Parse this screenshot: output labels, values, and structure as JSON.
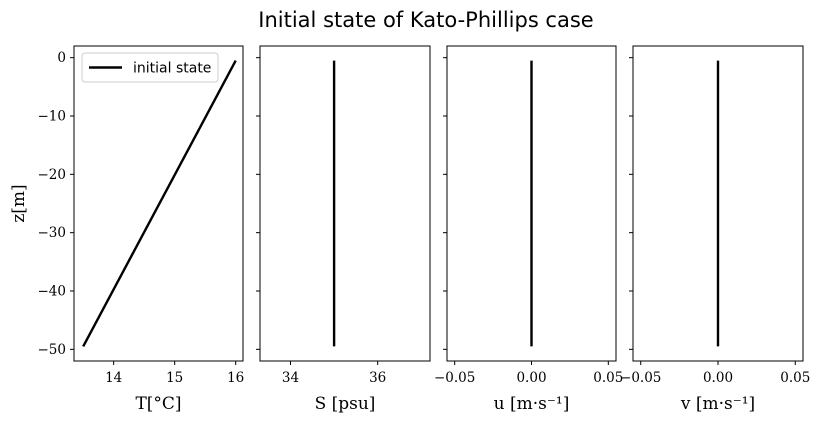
{
  "chart_data": {
    "title": "Initial state of Kato-Phillips case",
    "ylabel": "z[m]",
    "ylim": [
      -52,
      2
    ],
    "yticks": [
      0,
      -10,
      -20,
      -30,
      -40,
      -50
    ],
    "ytick_labels": [
      "0",
      "−10",
      "−20",
      "−30",
      "−40",
      "−50"
    ],
    "legend": {
      "label": "initial state",
      "placement": "top-left"
    },
    "panels": [
      {
        "type": "line",
        "xlabel": "T[°C]",
        "xlim": [
          13.35,
          16.12
        ],
        "xticks": [
          14,
          15,
          16
        ],
        "xtick_labels": [
          "14",
          "15",
          "16"
        ],
        "series": [
          {
            "name": "initial state",
            "x": [
              13.5,
              16.0
            ],
            "y": [
              -49.5,
              -0.5
            ]
          }
        ]
      },
      {
        "type": "line",
        "xlabel": "S [psu]",
        "xlim": [
          33.3,
          37.2
        ],
        "xticks": [
          34,
          36
        ],
        "xtick_labels": [
          "34",
          "36"
        ],
        "series": [
          {
            "x": [
              35.0,
              35.0
            ],
            "y": [
              -49.5,
              -0.5
            ]
          }
        ]
      },
      {
        "type": "line",
        "xlabel": "u [m·s⁻¹]",
        "xlim": [
          -0.055,
          0.055
        ],
        "xticks": [
          -0.05,
          0.0,
          0.05
        ],
        "xtick_labels": [
          "−0.05",
          "0.00",
          "0.05"
        ],
        "series": [
          {
            "x": [
              0.0,
              0.0
            ],
            "y": [
              -49.5,
              -0.5
            ]
          }
        ]
      },
      {
        "type": "line",
        "xlabel": "v [m·s⁻¹]",
        "xlim": [
          -0.055,
          0.055
        ],
        "xticks": [
          -0.05,
          0.0,
          0.05
        ],
        "xtick_labels": [
          "−0.05",
          "0.00",
          "0.05"
        ],
        "series": [
          {
            "x": [
              0.0,
              0.0
            ],
            "y": [
              -49.5,
              -0.5
            ]
          }
        ]
      }
    ]
  }
}
